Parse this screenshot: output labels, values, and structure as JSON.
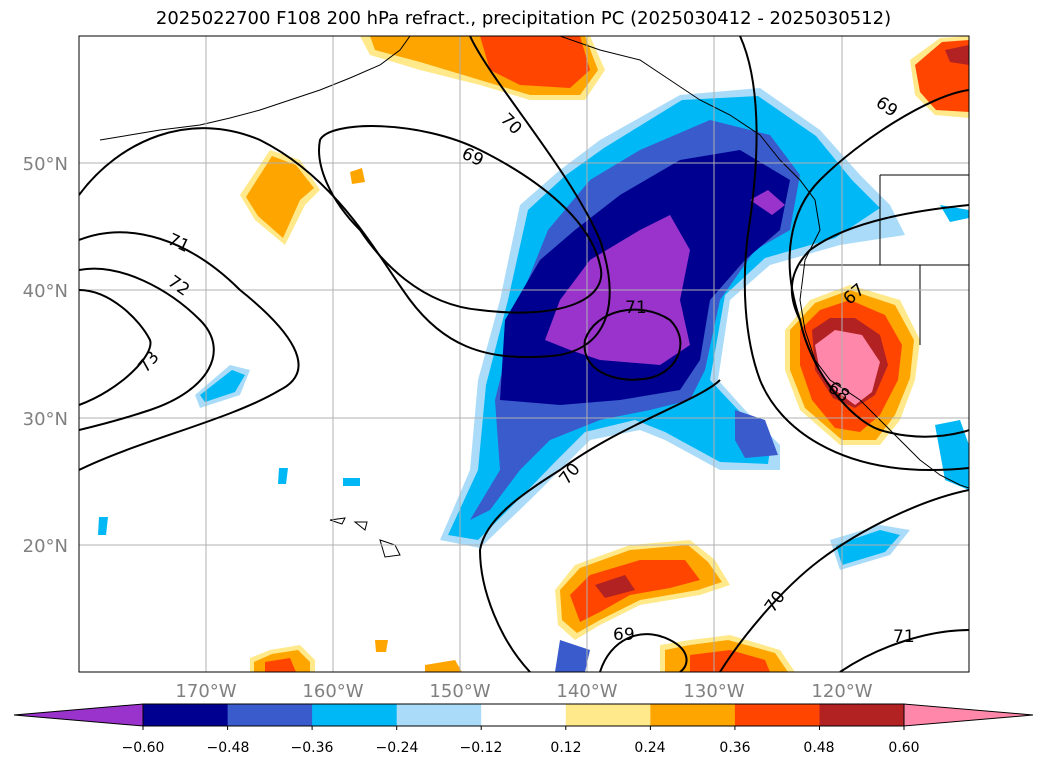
{
  "title": "2025022700 F108 200 hPa refract., precipitation PC (2025030412 - 2025030512)",
  "map": {
    "lon_labels": [
      "170°W",
      "160°W",
      "150°W",
      "140°W",
      "130°W",
      "120°W"
    ],
    "lat_labels": [
      "50°N",
      "40°N",
      "30°N",
      "20°N"
    ],
    "contour_labels": [
      "70",
      "69",
      "71",
      "72",
      "73",
      "71",
      "67",
      "68",
      "70",
      "69",
      "70",
      "71",
      "69"
    ]
  },
  "colorbar": {
    "ticks": [
      "−0.60",
      "−0.48",
      "−0.36",
      "−0.24",
      "−0.12",
      "0.12",
      "0.24",
      "0.36",
      "0.48",
      "0.60"
    ],
    "colors": [
      "#9933cc",
      "#000090",
      "#3a5bcc",
      "#00b8f5",
      "#aadcfa",
      "#ffffff",
      "#ffe98a",
      "#ffa500",
      "#ff4500",
      "#b22222",
      "#ff88aa"
    ]
  }
}
